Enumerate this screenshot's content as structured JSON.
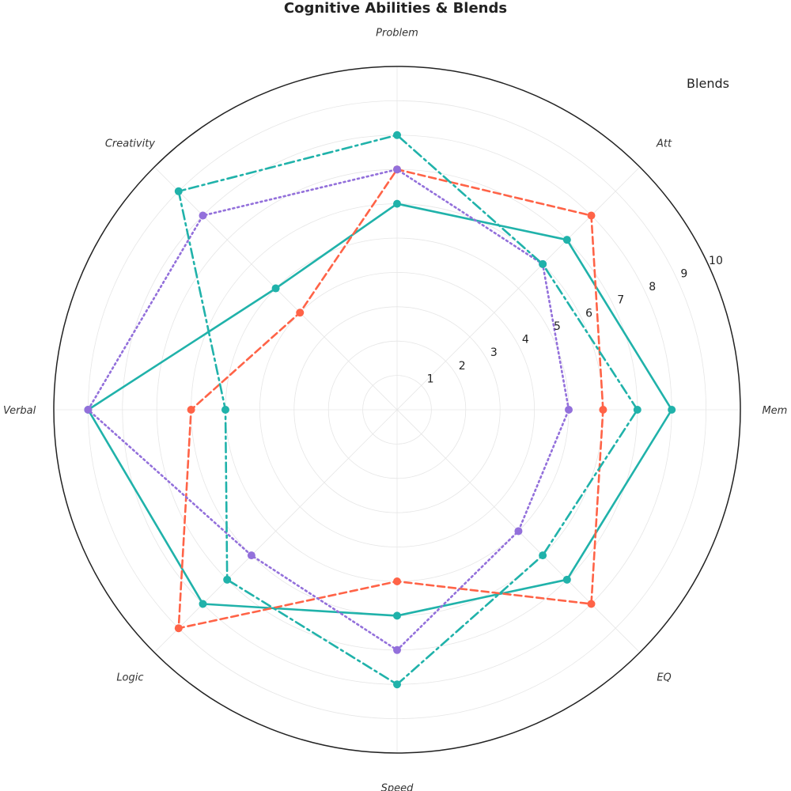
{
  "chart_data": {
    "type": "radar",
    "title": "Cognitive Abilities & Blends",
    "legend_title": "Blends",
    "legend_position": "top-right",
    "axes": [
      "Mem",
      "Att",
      "Problem",
      "Creativity",
      "Verbal",
      "Logic",
      "Speed",
      "EQ"
    ],
    "r_ticks": [
      1,
      2,
      3,
      4,
      5,
      6,
      7,
      8,
      9,
      10
    ],
    "r_range": [
      0,
      10
    ],
    "grid": true,
    "series": [
      {
        "color": "#20b2aa",
        "line_style": "solid",
        "values": [
          8.0,
          7.0,
          6.0,
          5.0,
          9.0,
          8.0,
          6.0,
          7.0
        ]
      },
      {
        "color": "#ff6347",
        "line_style": "dashed",
        "values": [
          6.0,
          8.0,
          7.0,
          4.0,
          6.0,
          9.0,
          5.0,
          8.0
        ]
      },
      {
        "color": "#9370db",
        "line_style": "dotted",
        "values": [
          5.0,
          6.0,
          7.0,
          8.0,
          9.0,
          6.0,
          7.0,
          5.0
        ]
      },
      {
        "color": "#20b2aa",
        "line_style": "dashdot",
        "values": [
          7.0,
          6.0,
          8.0,
          9.0,
          5.0,
          7.0,
          8.0,
          6.0
        ]
      }
    ]
  }
}
